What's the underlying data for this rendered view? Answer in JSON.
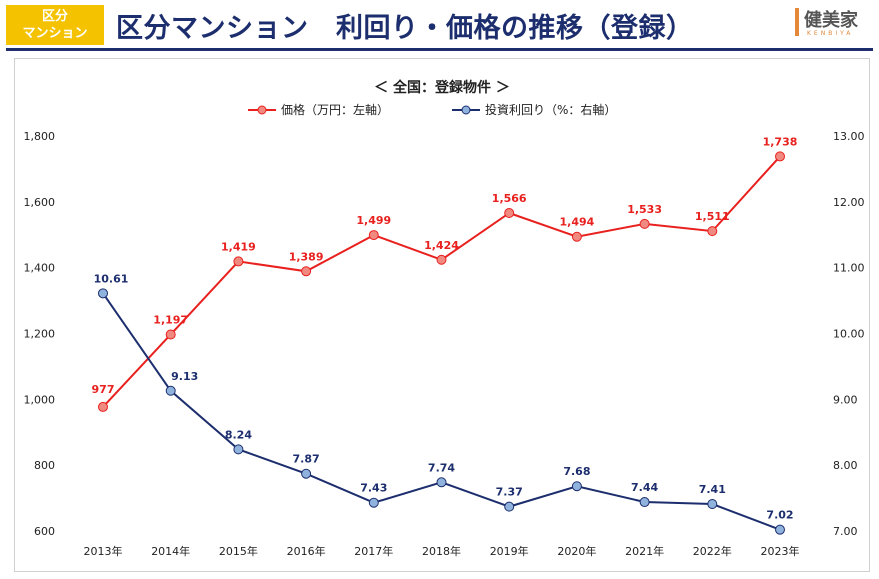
{
  "header": {
    "badge_line1": "区分",
    "badge_line2": "マンション",
    "title": "区分マンション　利回り・価格の推移（登録）",
    "logo_text": "健美家",
    "logo_sub": "KENBIYA"
  },
  "colors": {
    "price": "#e8201e",
    "price_marker": "#f08a80",
    "yield": "#1d2e6e",
    "yield_marker": "#8fb3dc",
    "badge": "#f5c200",
    "title": "#1d2e6e"
  },
  "chart_data": {
    "type": "line",
    "title": "＜ 全国：登録物件 ＞",
    "categories": [
      "2013年",
      "2014年",
      "2015年",
      "2016年",
      "2017年",
      "2018年",
      "2019年",
      "2020年",
      "2021年",
      "2022年",
      "2023年"
    ],
    "series": [
      {
        "name": "価格（万円：左軸）",
        "axis": "left",
        "values": [
          977,
          1197,
          1419,
          1389,
          1499,
          1424,
          1566,
          1494,
          1533,
          1511,
          1738
        ],
        "labels": [
          "977",
          "1,197",
          "1,419",
          "1,389",
          "1,499",
          "1,424",
          "1,566",
          "1,494",
          "1,533",
          "1,511",
          "1,738"
        ]
      },
      {
        "name": "投資利回り（%：右軸）",
        "axis": "right",
        "values": [
          10.61,
          9.13,
          8.24,
          7.87,
          7.43,
          7.74,
          7.37,
          7.68,
          7.44,
          7.41,
          7.02
        ],
        "labels": [
          "10.61",
          "9.13",
          "8.24",
          "7.87",
          "7.43",
          "7.74",
          "7.37",
          "7.68",
          "7.44",
          "7.41",
          "7.02"
        ]
      }
    ],
    "y_left": {
      "min": 600,
      "max": 1800,
      "ticks": [
        "600",
        "800",
        "1,000",
        "1,200",
        "1,400",
        "1,600",
        "1,800"
      ]
    },
    "y_right": {
      "min": 7.0,
      "max": 13.0,
      "ticks": [
        "7.00",
        "8.00",
        "9.00",
        "10.00",
        "11.00",
        "12.00",
        "13.00"
      ]
    },
    "grid": false,
    "legend": "top-center"
  }
}
